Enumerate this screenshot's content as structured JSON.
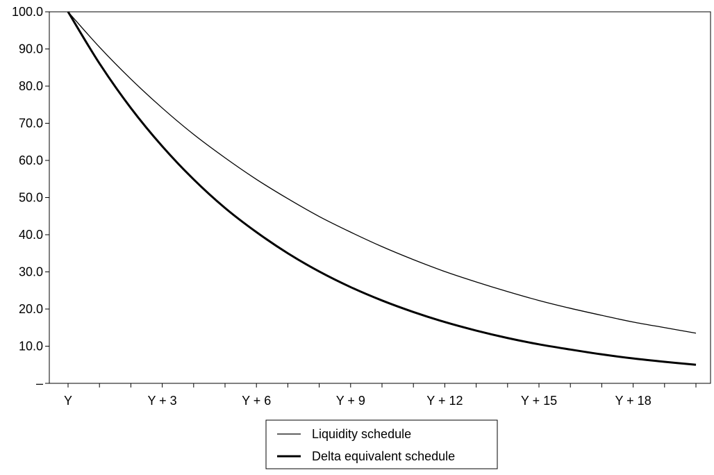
{
  "chart_data": {
    "type": "line",
    "title": "",
    "xlabel": "",
    "ylabel": "",
    "x": [
      0,
      1,
      2,
      3,
      4,
      5,
      6,
      7,
      8,
      9,
      10,
      11,
      12,
      13,
      14,
      15,
      16,
      17,
      18,
      19,
      20
    ],
    "x_tick_labels": [
      "Y",
      "Y + 3",
      "Y + 6",
      "Y + 9",
      "Y + 12",
      "Y + 15",
      "Y + 18"
    ],
    "x_tick_positions": [
      0,
      3,
      6,
      9,
      12,
      15,
      18
    ],
    "xlim": [
      0,
      20
    ],
    "y_tick_labels": [
      "–",
      "10.0",
      "20.0",
      "30.0",
      "40.0",
      "50.0",
      "60.0",
      "70.0",
      "80.0",
      "90.0",
      "100.0"
    ],
    "y_tick_values": [
      0,
      10,
      20,
      30,
      40,
      50,
      60,
      70,
      80,
      90,
      100
    ],
    "ylim": [
      0,
      100
    ],
    "grid": false,
    "legend_position": "bottom-center",
    "series": [
      {
        "name": "Liquidity schedule",
        "line_weight": "thin",
        "values": [
          100.0,
          90.5,
          81.9,
          74.1,
          67.0,
          60.7,
          54.9,
          49.7,
          44.9,
          40.7,
          36.8,
          33.3,
          30.1,
          27.3,
          24.7,
          22.3,
          20.2,
          18.3,
          16.5,
          15.0,
          13.5
        ]
      },
      {
        "name": "Delta equivalent schedule",
        "line_weight": "thick",
        "values": [
          100.0,
          86.1,
          74.1,
          63.8,
          54.9,
          47.2,
          40.7,
          35.0,
          30.1,
          25.9,
          22.3,
          19.2,
          16.5,
          14.2,
          12.2,
          10.5,
          9.1,
          7.8,
          6.7,
          5.8,
          5.0
        ]
      }
    ]
  }
}
